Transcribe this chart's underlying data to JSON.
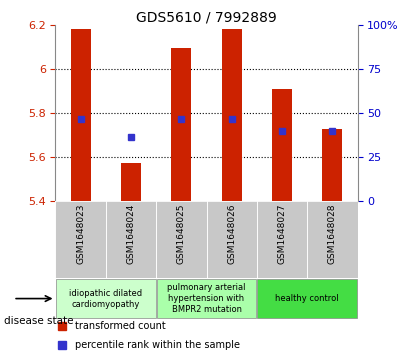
{
  "title": "GDS5610 / 7992889",
  "samples": [
    "GSM1648023",
    "GSM1648024",
    "GSM1648025",
    "GSM1648026",
    "GSM1648027",
    "GSM1648028"
  ],
  "bar_values": [
    6.185,
    5.575,
    6.095,
    6.185,
    5.91,
    5.73
  ],
  "blue_values": [
    5.775,
    5.69,
    5.775,
    5.775,
    5.72,
    5.72
  ],
  "y_min": 5.4,
  "y_max": 6.2,
  "y_ticks": [
    5.4,
    5.6,
    5.8,
    6.0,
    6.2
  ],
  "y_tick_labels": [
    "5.4",
    "5.6",
    "5.8",
    "6",
    "6.2"
  ],
  "right_ticks_pct": [
    0,
    25,
    50,
    75,
    100
  ],
  "right_tick_labels": [
    "0",
    "25",
    "50",
    "75",
    "100%"
  ],
  "bar_color": "#cc2200",
  "blue_color": "#3333cc",
  "legend_red": "transformed count",
  "legend_blue": "percentile rank within the sample",
  "disease_state_label": "disease state",
  "bg_color": "#ffffff",
  "tick_color_left": "#cc2200",
  "tick_color_right": "#0000cc",
  "gray_bg": "#c8c8c8",
  "group_colors": [
    "#ccffcc",
    "#aaffaa",
    "#44dd44"
  ],
  "group_texts": [
    "idiopathic dilated\ncardiomyopathy",
    "pulmonary arterial\nhypertension with\nBMPR2 mutation",
    "healthy control"
  ],
  "group_ncols": [
    2,
    2,
    2
  ]
}
